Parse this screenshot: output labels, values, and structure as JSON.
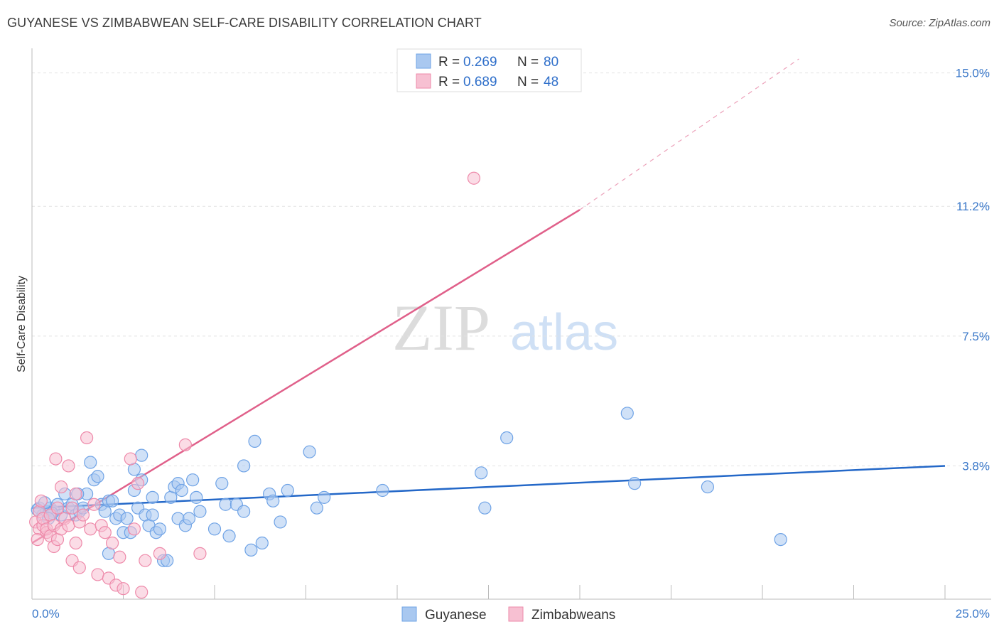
{
  "title": "GUYANESE VS ZIMBABWEAN SELF-CARE DISABILITY CORRELATION CHART",
  "source": "Source: ZipAtlas.com",
  "chart_data": {
    "type": "scatter",
    "title": "GUYANESE VS ZIMBABWEAN SELF-CARE DISABILITY CORRELATION CHART",
    "xlabel": "",
    "ylabel": "Self-Care Disability",
    "xlim": [
      0,
      25
    ],
    "ylim": [
      0,
      15.5
    ],
    "x_tick_labels": [
      "0.0%",
      "25.0%"
    ],
    "y_ticks": [
      3.8,
      7.5,
      11.2,
      15.0
    ],
    "y_tick_labels": [
      "3.8%",
      "7.5%",
      "11.2%",
      "15.0%"
    ],
    "grid": true,
    "legend": {
      "position": "top-center",
      "entries": [
        {
          "r_label": "R =",
          "r_value": "0.269",
          "n_label": "N =",
          "n_value": "80"
        },
        {
          "r_label": "R =",
          "r_value": "0.689",
          "n_label": "N =",
          "n_value": "48"
        }
      ]
    },
    "watermark": "ZIPatlas",
    "series": [
      {
        "name": "Guyanese",
        "color": "#6fa3e6",
        "fill": "#a9c8f0",
        "trend_color": "#2468c8",
        "trend": {
          "x": [
            0,
            25
          ],
          "y": [
            2.6,
            3.8
          ],
          "dashed_to": null
        },
        "points": [
          [
            0.2,
            2.6
          ],
          [
            0.3,
            2.4
          ],
          [
            0.4,
            2.5
          ],
          [
            0.5,
            2.6
          ],
          [
            0.6,
            2.5
          ],
          [
            0.7,
            2.7
          ],
          [
            0.8,
            2.4
          ],
          [
            0.9,
            3.0
          ],
          [
            1.0,
            2.6
          ],
          [
            1.1,
            2.7
          ],
          [
            1.2,
            2.4
          ],
          [
            1.3,
            2.5
          ],
          [
            1.4,
            2.6
          ],
          [
            1.5,
            3.0
          ],
          [
            1.6,
            3.9
          ],
          [
            1.7,
            3.4
          ],
          [
            1.8,
            3.5
          ],
          [
            1.9,
            2.7
          ],
          [
            2.0,
            2.5
          ],
          [
            2.1,
            1.3
          ],
          [
            2.1,
            2.8
          ],
          [
            2.2,
            2.8
          ],
          [
            2.3,
            2.3
          ],
          [
            2.4,
            2.4
          ],
          [
            2.5,
            1.9
          ],
          [
            2.6,
            2.3
          ],
          [
            2.7,
            1.9
          ],
          [
            2.8,
            3.1
          ],
          [
            2.8,
            3.7
          ],
          [
            2.9,
            2.6
          ],
          [
            3.0,
            3.4
          ],
          [
            3.0,
            4.1
          ],
          [
            3.1,
            2.4
          ],
          [
            3.2,
            2.1
          ],
          [
            3.3,
            2.4
          ],
          [
            3.3,
            2.9
          ],
          [
            3.4,
            1.9
          ],
          [
            3.5,
            2.0
          ],
          [
            3.6,
            1.1
          ],
          [
            3.7,
            1.1
          ],
          [
            3.8,
            2.9
          ],
          [
            3.9,
            3.2
          ],
          [
            4.0,
            3.3
          ],
          [
            4.0,
            2.3
          ],
          [
            4.1,
            3.1
          ],
          [
            4.2,
            2.1
          ],
          [
            4.3,
            2.3
          ],
          [
            4.4,
            3.4
          ],
          [
            4.5,
            2.9
          ],
          [
            4.6,
            2.5
          ],
          [
            5.0,
            2.0
          ],
          [
            5.2,
            3.3
          ],
          [
            5.3,
            2.7
          ],
          [
            5.4,
            1.8
          ],
          [
            5.6,
            2.7
          ],
          [
            5.8,
            3.8
          ],
          [
            5.8,
            2.5
          ],
          [
            6.0,
            1.4
          ],
          [
            6.1,
            4.5
          ],
          [
            6.3,
            1.6
          ],
          [
            6.5,
            3.0
          ],
          [
            6.6,
            2.8
          ],
          [
            6.8,
            2.2
          ],
          [
            7.0,
            3.1
          ],
          [
            7.6,
            4.2
          ],
          [
            7.8,
            2.6
          ],
          [
            8.0,
            2.9
          ],
          [
            9.6,
            3.1
          ],
          [
            12.3,
            3.6
          ],
          [
            12.4,
            2.6
          ],
          [
            13.0,
            4.6
          ],
          [
            16.3,
            5.3
          ],
          [
            16.5,
            3.3
          ],
          [
            18.5,
            3.2
          ],
          [
            20.5,
            1.7
          ],
          [
            0.15,
            2.55
          ],
          [
            0.35,
            2.75
          ],
          [
            0.55,
            2.45
          ],
          [
            1.25,
            3.0
          ],
          [
            0.45,
            2.3
          ]
        ]
      },
      {
        "name": "Zimbabweans",
        "color": "#ee8aaa",
        "fill": "#f7c0d2",
        "trend_color": "#e0608a",
        "trend": {
          "x": [
            0,
            15
          ],
          "y": [
            1.6,
            11.1
          ],
          "dashed_to": [
            21,
            15.4
          ]
        },
        "points": [
          [
            0.1,
            2.2
          ],
          [
            0.2,
            2.0
          ],
          [
            0.2,
            2.5
          ],
          [
            0.3,
            2.1
          ],
          [
            0.3,
            2.3
          ],
          [
            0.4,
            1.9
          ],
          [
            0.4,
            2.0
          ],
          [
            0.5,
            2.4
          ],
          [
            0.5,
            1.8
          ],
          [
            0.6,
            2.1
          ],
          [
            0.6,
            1.5
          ],
          [
            0.7,
            1.7
          ],
          [
            0.7,
            2.6
          ],
          [
            0.8,
            2.0
          ],
          [
            0.8,
            3.2
          ],
          [
            0.9,
            2.3
          ],
          [
            1.0,
            3.8
          ],
          [
            1.0,
            2.1
          ],
          [
            1.1,
            2.6
          ],
          [
            1.1,
            1.1
          ],
          [
            1.2,
            3.0
          ],
          [
            1.2,
            1.6
          ],
          [
            1.3,
            2.2
          ],
          [
            1.3,
            0.9
          ],
          [
            1.4,
            2.4
          ],
          [
            1.5,
            4.6
          ],
          [
            1.6,
            2.0
          ],
          [
            1.7,
            2.7
          ],
          [
            1.8,
            0.7
          ],
          [
            1.9,
            2.1
          ],
          [
            2.0,
            1.9
          ],
          [
            2.1,
            0.6
          ],
          [
            2.2,
            1.6
          ],
          [
            2.3,
            0.4
          ],
          [
            2.4,
            1.2
          ],
          [
            2.5,
            0.3
          ],
          [
            2.7,
            4.0
          ],
          [
            2.8,
            2.0
          ],
          [
            2.9,
            3.3
          ],
          [
            3.0,
            0.2
          ],
          [
            3.1,
            1.1
          ],
          [
            3.5,
            1.3
          ],
          [
            4.2,
            4.4
          ],
          [
            4.6,
            1.3
          ],
          [
            12.1,
            12.0
          ],
          [
            0.15,
            1.7
          ],
          [
            0.25,
            2.8
          ],
          [
            0.65,
            4.0
          ]
        ]
      }
    ]
  }
}
